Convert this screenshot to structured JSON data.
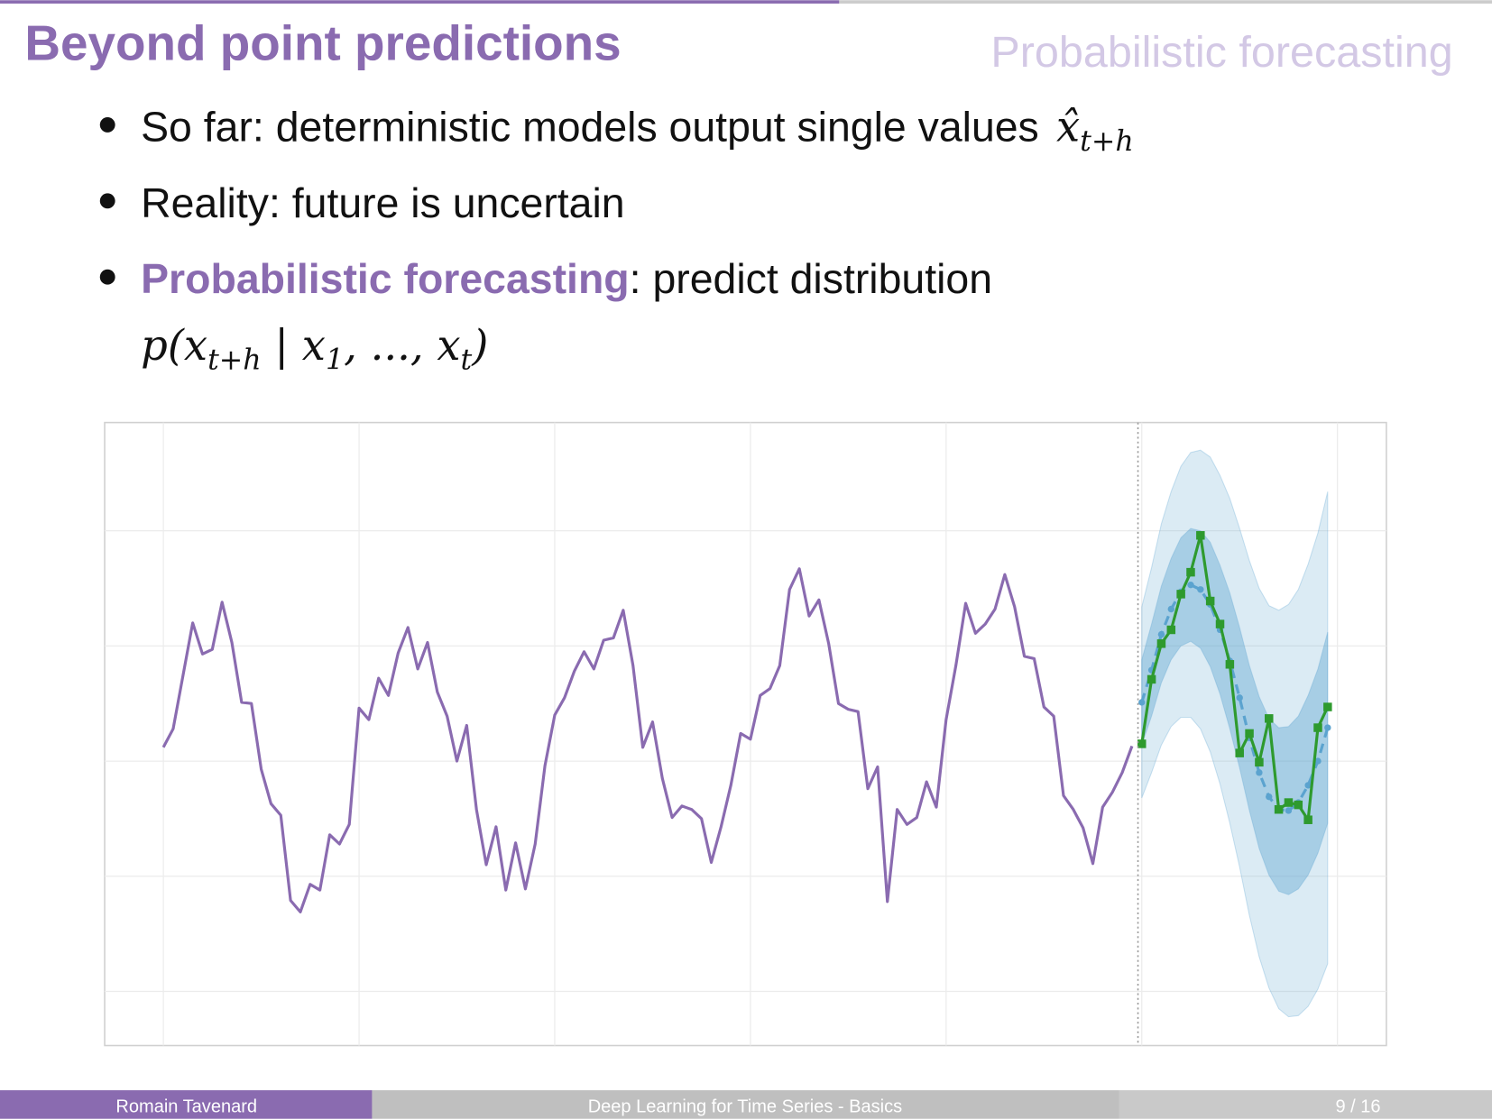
{
  "header": {
    "title": "Beyond point predictions",
    "section": "Probabilistic forecasting"
  },
  "bullets": [
    {
      "text": "So far: deterministic models output single values ",
      "formula": [
        {
          "base": "x̂",
          "sub": "t+h"
        }
      ]
    },
    {
      "text": "Reality: future is uncertain"
    },
    {
      "emph": "Probabilistic forecasting",
      "text": ": predict distribution",
      "formula": [
        {
          "base": "p(x",
          "sub": "t+h"
        },
        {
          "base": " | x",
          "sub": "1"
        },
        {
          "base": ", ..., x",
          "sub": "t"
        },
        {
          "base": ")"
        }
      ]
    }
  ],
  "footer": {
    "author": "Romain Tavenard",
    "talk": "Deep Learning for Time Series - Basics",
    "page": "9 / 16"
  },
  "chart_data": {
    "type": "line",
    "xlim": [
      -6,
      125
    ],
    "xticks": [
      0,
      20,
      40,
      60,
      80,
      100,
      120
    ],
    "ylim": [
      -2.47,
      2.94
    ],
    "yticks": [
      -2,
      -1,
      0,
      1,
      2
    ],
    "grid": true,
    "forecast_start": 100,
    "series": [
      {
        "color": "#8a6bb0",
        "x": [
          0,
          1,
          2,
          3,
          4,
          5,
          6,
          7,
          8,
          9,
          10,
          11,
          12,
          13,
          14,
          15,
          16,
          17,
          18,
          19,
          20,
          21,
          22,
          23,
          24,
          25,
          26,
          27,
          28,
          29,
          30,
          31,
          32,
          33,
          34,
          35,
          36,
          37,
          38,
          39,
          40,
          41,
          42,
          43,
          44,
          45,
          46,
          47,
          48,
          49,
          50,
          51,
          52,
          53,
          54,
          55,
          56,
          57,
          58,
          59,
          60,
          61,
          62,
          63,
          64,
          65,
          66,
          67,
          68,
          69,
          70,
          71,
          72,
          73,
          74,
          75,
          76,
          77,
          78,
          79,
          80,
          81,
          82,
          83,
          84,
          85,
          86,
          87,
          88,
          89,
          90,
          91,
          92,
          93,
          94,
          95,
          96,
          97,
          98,
          99
        ],
        "values": [
          0.12,
          0.28,
          0.74,
          1.2,
          0.93,
          0.97,
          1.38,
          1.03,
          0.51,
          0.5,
          -0.07,
          -0.37,
          -0.47,
          -1.21,
          -1.31,
          -1.07,
          -1.12,
          -0.64,
          -0.72,
          -0.55,
          0.46,
          0.36,
          0.72,
          0.57,
          0.94,
          1.16,
          0.8,
          1.03,
          0.6,
          0.39,
          0,
          0.31,
          -0.42,
          -0.9,
          -0.57,
          -1.12,
          -0.71,
          -1.11,
          -0.72,
          -0.04,
          0.4,
          0.55,
          0.78,
          0.95,
          0.8,
          1.05,
          1.07,
          1.31,
          0.83,
          0.12,
          0.34,
          -0.15,
          -0.49,
          -0.39,
          -0.42,
          -0.5,
          -0.88,
          -0.57,
          -0.21,
          0.24,
          0.19,
          0.57,
          0.63,
          0.83,
          1.49,
          1.67,
          1.26,
          1.4,
          1.02,
          0.5,
          0.45,
          0.43,
          -0.24,
          -0.05,
          -1.22,
          -0.42,
          -0.55,
          -0.49,
          -0.18,
          -0.4,
          0.36,
          0.83,
          1.37,
          1.11,
          1.19,
          1.32,
          1.62,
          1.34,
          0.91,
          0.89,
          0.47,
          0.39,
          -0.3,
          -0.42,
          -0.58,
          -0.89,
          -0.4,
          -0.27,
          -0.1,
          0.13
        ]
      },
      {
        "color": "#2e9a2e",
        "marker": "square",
        "x": [
          100,
          101,
          102,
          103,
          104,
          105,
          106,
          107,
          108,
          109,
          110,
          111,
          112,
          113,
          114,
          115,
          116,
          117,
          118,
          119
        ],
        "values": [
          0.15,
          0.71,
          1.02,
          1.14,
          1.45,
          1.64,
          1.96,
          1.39,
          1.19,
          0.84,
          0.07,
          0.24,
          -0.01,
          0.37,
          -0.42,
          -0.36,
          -0.38,
          -0.51,
          0.29,
          0.47
        ]
      }
    ],
    "forecast": {
      "color": "#5ba3cf",
      "x": [
        100,
        101,
        102,
        103,
        104,
        105,
        106,
        107,
        108,
        109,
        110,
        111,
        112,
        113,
        114,
        115,
        116,
        117,
        118,
        119
      ],
      "mean": [
        0.51,
        0.79,
        1.1,
        1.32,
        1.47,
        1.53,
        1.49,
        1.36,
        1.14,
        0.87,
        0.55,
        0.2,
        -0.1,
        -0.31,
        -0.42,
        -0.43,
        -0.36,
        -0.21,
        0,
        0.29
      ],
      "bands": [
        {
          "opacity": 0.22,
          "half_width": [
            0.83,
            0.89,
            0.96,
            1.02,
            1.09,
            1.15,
            1.21,
            1.28,
            1.34,
            1.41,
            1.47,
            1.54,
            1.6,
            1.66,
            1.73,
            1.79,
            1.85,
            1.92,
            1.98,
            2.05
          ]
        },
        {
          "opacity": 0.4,
          "half_width": [
            0.37,
            0.4,
            0.42,
            0.44,
            0.47,
            0.49,
            0.51,
            0.54,
            0.56,
            0.59,
            0.61,
            0.63,
            0.66,
            0.68,
            0.71,
            0.73,
            0.75,
            0.78,
            0.8,
            0.83
          ]
        }
      ]
    }
  }
}
